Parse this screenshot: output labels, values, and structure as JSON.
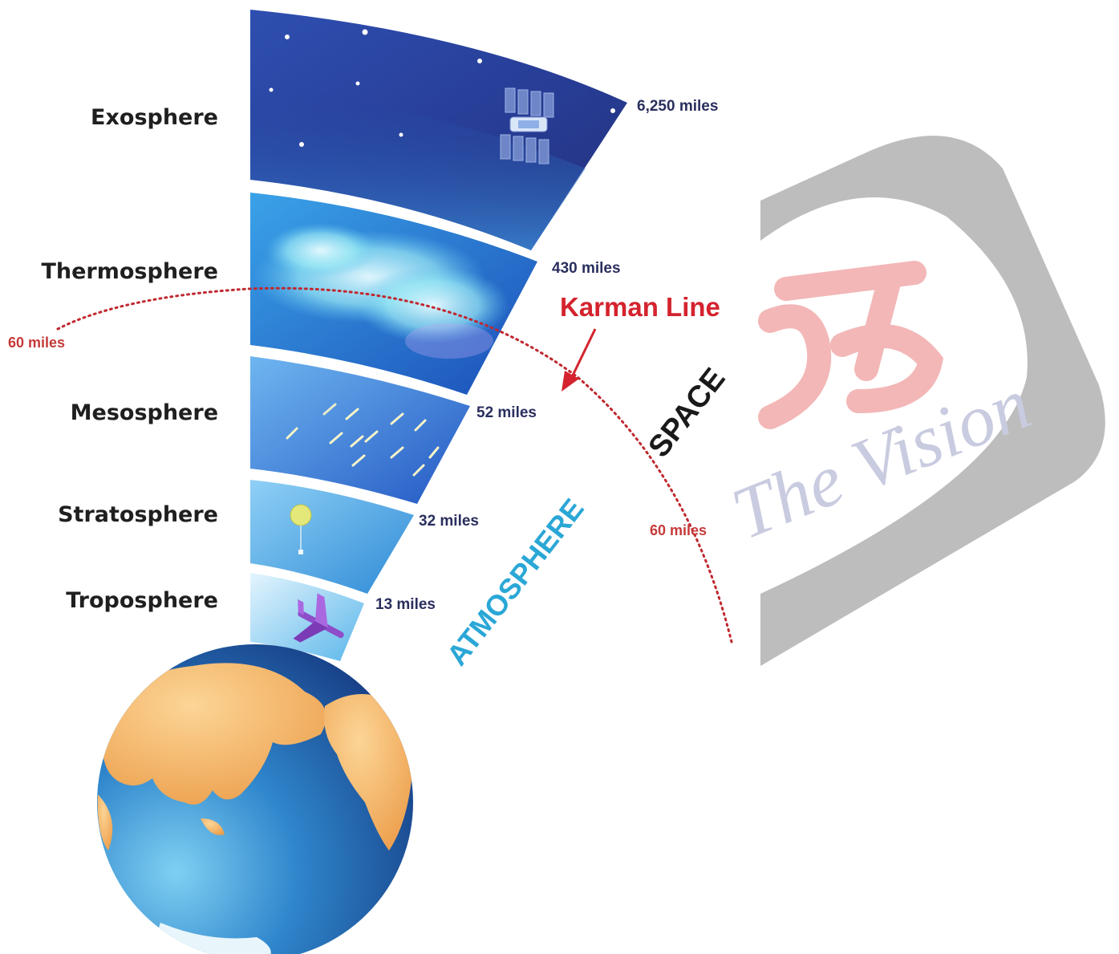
{
  "layers": [
    {
      "name": "Exosphere",
      "top": "6,250 miles"
    },
    {
      "name": "Thermosphere",
      "top": "430 miles"
    },
    {
      "name": "Mesosphere",
      "top": "52 miles"
    },
    {
      "name": "Stratosphere",
      "top": "32 miles"
    },
    {
      "name": "Troposphere",
      "top": "13 miles"
    }
  ],
  "karman": {
    "label": "Karman Line",
    "left_alt": "60 miles",
    "right_alt": "60 miles"
  },
  "regions": {
    "space": "SPACE",
    "atmosphere": "ATMOSPHERE"
  },
  "watermark": {
    "text": "The Vision"
  },
  "colors": {
    "exosphere_top": "#2b3c93",
    "exosphere_bottom": "#2f79c9",
    "thermosphere": "#2e7fd6",
    "mesosphere": "#3a86df",
    "stratosphere": "#4aa6e3",
    "troposphere": "#8fd0f3",
    "karman_line": "#c0282f",
    "land": "#f5b56c",
    "ocean": "#2f7fc8"
  }
}
